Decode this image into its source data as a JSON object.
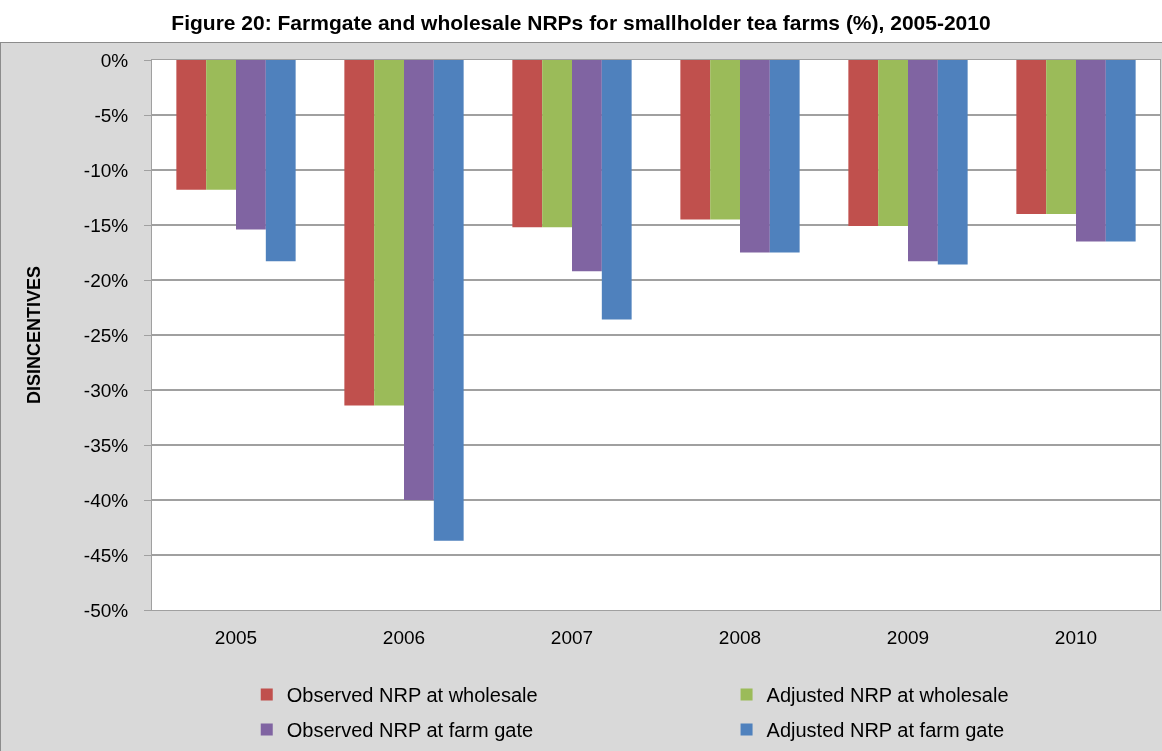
{
  "chart_data": {
    "type": "bar",
    "title": "Figure 20: Farmgate and wholesale NRPs for smallholder tea farms (%), 2005-2010",
    "ylabel": "DISINCENTIVES",
    "categories": [
      "2005",
      "2006",
      "2007",
      "2008",
      "2009",
      "2010"
    ],
    "series": [
      {
        "name": "Observed NRP at wholesale",
        "color": "#c0504d",
        "values": [
          -11.8,
          -31.4,
          -15.2,
          -14.5,
          -15.1,
          -14.0
        ]
      },
      {
        "name": "Adjusted NRP at wholesale",
        "color": "#9bbb59",
        "values": [
          -11.8,
          -31.4,
          -15.2,
          -14.5,
          -15.1,
          -14.0
        ]
      },
      {
        "name": "Observed NRP at farm gate",
        "color": "#8064a2",
        "values": [
          -15.4,
          -40.0,
          -19.2,
          -17.5,
          -18.3,
          -16.5
        ]
      },
      {
        "name": "Adjusted NRP at farm gate",
        "color": "#4f81bd",
        "values": [
          -18.3,
          -43.7,
          -23.6,
          -17.5,
          -18.6,
          -16.5
        ]
      }
    ],
    "ylim": [
      -50,
      0
    ],
    "yticks": [
      {
        "value": 0,
        "label": "0%"
      },
      {
        "value": -5,
        "label": "-5%"
      },
      {
        "value": -10,
        "label": "-10%"
      },
      {
        "value": -15,
        "label": "-15%"
      },
      {
        "value": -20,
        "label": "-20%"
      },
      {
        "value": -25,
        "label": "-25%"
      },
      {
        "value": -30,
        "label": "-30%"
      },
      {
        "value": -35,
        "label": "-35%"
      },
      {
        "value": -40,
        "label": "-40%"
      },
      {
        "value": -45,
        "label": "-45%"
      },
      {
        "value": -50,
        "label": "-50%"
      }
    ],
    "grid": "y",
    "legend": "bottom"
  }
}
